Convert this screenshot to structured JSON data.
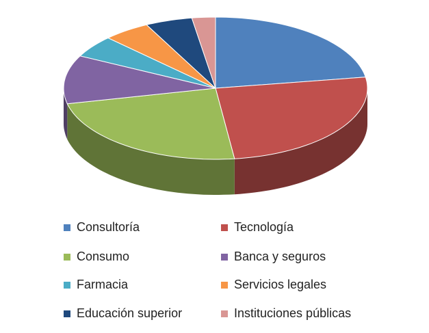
{
  "chart_data": {
    "type": "pie3d",
    "categories": [
      "Consultoría",
      "Tecnología",
      "Consumo",
      "Banca y seguros",
      "Farmacia",
      "Servicios legales",
      "Educación superior",
      "Instituciones públicas"
    ],
    "values": [
      22.5,
      25.5,
      23.5,
      11,
      5,
      5,
      5,
      2.5
    ],
    "colors": [
      "#4F81BD",
      "#C0504D",
      "#9BBB59",
      "#8064A2",
      "#4BACC6",
      "#F79646",
      "#1F497D",
      "#D99694"
    ]
  }
}
